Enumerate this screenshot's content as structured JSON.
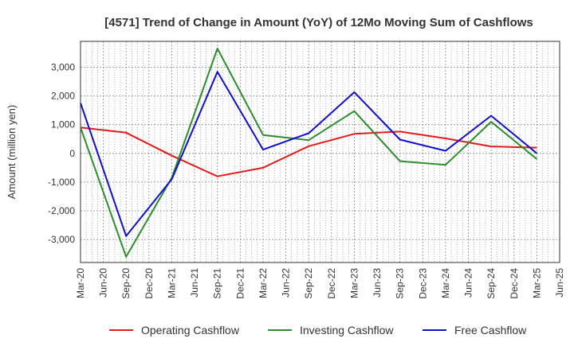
{
  "chart_data": {
    "type": "line",
    "title": "[4571]  Trend of Change in Amount (YoY) of 12Mo Moving Sum of Cashflows",
    "xlabel": "",
    "ylabel": "Amount (million yen)",
    "ylim": [
      -3800,
      3900
    ],
    "yticks": [
      3000,
      2000,
      1000,
      0,
      -1000,
      -2000,
      -3000
    ],
    "ytick_labels": [
      "3,000",
      "2,000",
      "1,000",
      "0",
      "-1,000",
      "-2,000",
      "-3,000"
    ],
    "categories": [
      "Mar-20",
      "Jun-20",
      "Sep-20",
      "Dec-20",
      "Mar-21",
      "Jun-21",
      "Sep-21",
      "Dec-21",
      "Mar-22",
      "Jun-22",
      "Sep-22",
      "Dec-22",
      "Mar-23",
      "Jun-23",
      "Sep-23",
      "Dec-23",
      "Mar-24",
      "Jun-24",
      "Sep-24",
      "Dec-24",
      "Mar-25",
      "Jun-25"
    ],
    "grid": true,
    "legend_position": "bottom",
    "series": [
      {
        "name": "Operating Cashflow",
        "color": "#e31a1c",
        "points": [
          [
            0,
            900
          ],
          [
            2,
            720
          ],
          [
            4,
            -80
          ],
          [
            6,
            -800
          ],
          [
            8,
            -500
          ],
          [
            10,
            250
          ],
          [
            12,
            680
          ],
          [
            14,
            760
          ],
          [
            16,
            520
          ],
          [
            18,
            240
          ],
          [
            20,
            200
          ]
        ]
      },
      {
        "name": "Investing Cashflow",
        "color": "#2e8b2e",
        "points": [
          [
            0,
            900
          ],
          [
            2,
            -3600
          ],
          [
            4,
            -850
          ],
          [
            6,
            3650
          ],
          [
            8,
            640
          ],
          [
            10,
            460
          ],
          [
            12,
            1470
          ],
          [
            14,
            -270
          ],
          [
            16,
            -400
          ],
          [
            18,
            1100
          ],
          [
            20,
            -200
          ]
        ]
      },
      {
        "name": "Free Cashflow",
        "color": "#1010cc",
        "points": [
          [
            0,
            1750
          ],
          [
            2,
            -2880
          ],
          [
            4,
            -900
          ],
          [
            6,
            2840
          ],
          [
            8,
            130
          ],
          [
            10,
            700
          ],
          [
            12,
            2130
          ],
          [
            14,
            480
          ],
          [
            16,
            90
          ],
          [
            18,
            1310
          ],
          [
            20,
            0
          ]
        ]
      }
    ]
  }
}
